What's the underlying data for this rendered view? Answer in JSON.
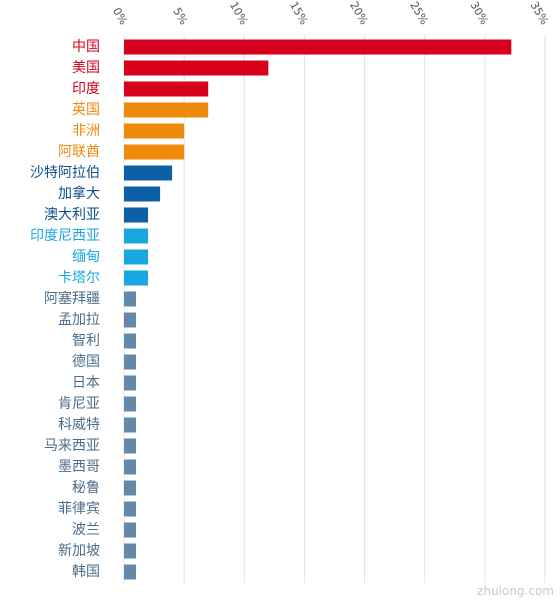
{
  "chart_data": {
    "type": "bar",
    "orientation": "horizontal",
    "xlim": [
      0,
      35
    ],
    "x_ticks": [
      0,
      5,
      10,
      15,
      20,
      25,
      30,
      35
    ],
    "x_tick_labels": [
      "0%",
      "5%",
      "10%",
      "15%",
      "20%",
      "25%",
      "30%",
      "35%"
    ],
    "grid": true,
    "categories": [
      "中国",
      "美国",
      "印度",
      "英国",
      "非洲",
      "阿联酋",
      "沙特阿拉伯",
      "加拿大",
      "澳大利亚",
      "印度尼西亚",
      "缅甸",
      "卡塔尔",
      "阿塞拜疆",
      "孟加拉",
      "智利",
      "德国",
      "日本",
      "肯尼亚",
      "科威特",
      "马来西亚",
      "墨西哥",
      "秘鲁",
      "菲律宾",
      "波兰",
      "新加坡",
      "韩国"
    ],
    "values": [
      32.2,
      12.0,
      7.0,
      7.0,
      5.0,
      5.0,
      4.0,
      3.0,
      2.0,
      2.0,
      2.0,
      2.0,
      1.0,
      1.0,
      1.0,
      1.0,
      1.0,
      1.0,
      1.0,
      1.0,
      1.0,
      1.0,
      1.0,
      1.0,
      1.0,
      1.0
    ],
    "bar_colors": [
      "#d6001c",
      "#d6001c",
      "#d6001c",
      "#f08a0c",
      "#f08a0c",
      "#f08a0c",
      "#0d5fa6",
      "#0d5fa6",
      "#0d5fa6",
      "#19a7e0",
      "#19a7e0",
      "#19a7e0",
      "#6388a8",
      "#6388a8",
      "#6388a8",
      "#6388a8",
      "#6388a8",
      "#6388a8",
      "#6388a8",
      "#6388a8",
      "#6388a8",
      "#6388a8",
      "#6388a8",
      "#6388a8",
      "#6388a8",
      "#6388a8"
    ],
    "label_colors": [
      "#d6001c",
      "#d6001c",
      "#d6001c",
      "#f08a0c",
      "#f08a0c",
      "#f08a0c",
      "#0d4f8a",
      "#0d4f8a",
      "#0d4f8a",
      "#19a7e0",
      "#19a7e0",
      "#19a7e0",
      "#4a6d8c",
      "#4a6d8c",
      "#4a6d8c",
      "#4a6d8c",
      "#4a6d8c",
      "#4a6d8c",
      "#4a6d8c",
      "#4a6d8c",
      "#4a6d8c",
      "#4a6d8c",
      "#4a6d8c",
      "#4a6d8c",
      "#4a6d8c",
      "#4a6d8c"
    ],
    "grid_color": "#e3e3e3"
  },
  "watermark": "zhulong.com"
}
